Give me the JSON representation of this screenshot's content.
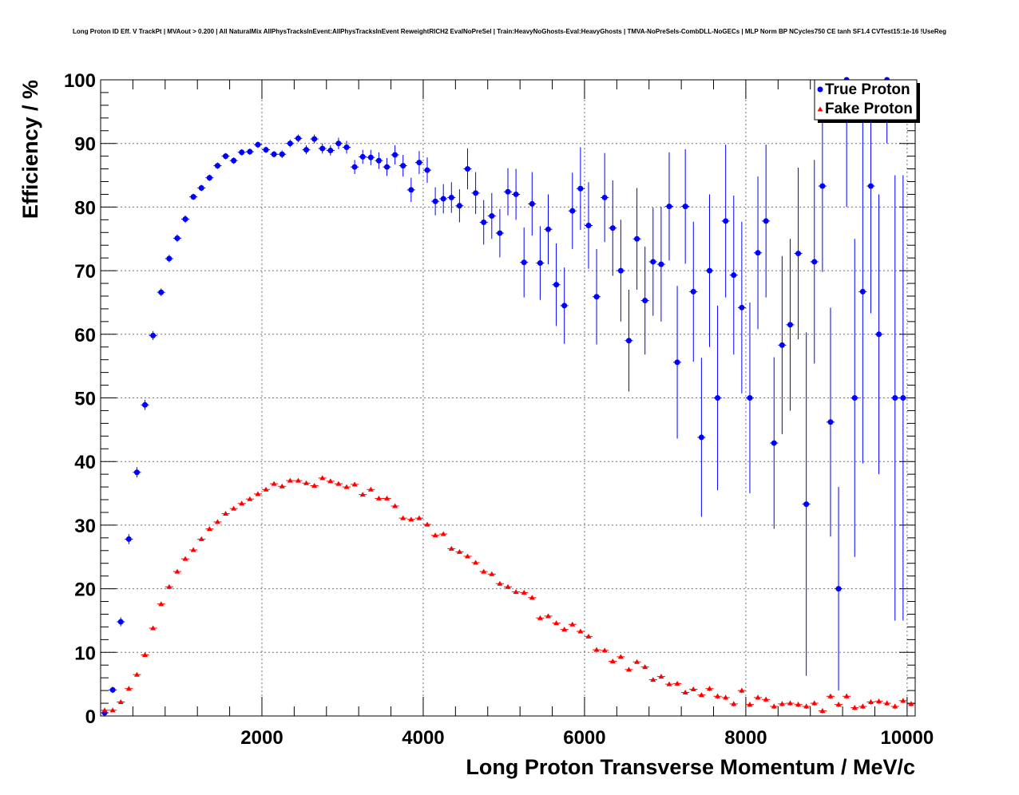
{
  "chart_data": {
    "type": "scatter",
    "title": "Long Proton ID Eff. V TrackPt | MVAout > 0.200 | All NaturalMix AllPhysTracksInEvent:AllPhysTracksInEvent ReweightRICH2 EvalNoPreSel | Train:HeavyNoGhosts-Eval:HeavyGhosts | TMVA-NoPreSels-CombDLL-NoGECs | MLP Norm BP NCycles750 CE tanh SF1.4 CVTest15:1e-16 !UseReg",
    "xlabel": "Long Proton Transverse Momentum / MeV/c",
    "ylabel": "Efficiency / %",
    "xlim": [
      0,
      10100
    ],
    "ylim": [
      0,
      100
    ],
    "x_ticks": [
      "2000",
      "4000",
      "6000",
      "8000",
      "10000"
    ],
    "y_ticks": [
      "0",
      "10",
      "20",
      "30",
      "40",
      "50",
      "60",
      "70",
      "80",
      "90",
      "100"
    ],
    "grid": true,
    "legend_position": "top-right",
    "bin_width": 100,
    "series": [
      {
        "name": "True Proton",
        "color": "#0000ff",
        "marker": "circle",
        "x": [
          50,
          150,
          250,
          350,
          450,
          550,
          650,
          750,
          850,
          950,
          1050,
          1150,
          1250,
          1350,
          1450,
          1550,
          1650,
          1750,
          1850,
          1950,
          2050,
          2150,
          2250,
          2350,
          2450,
          2550,
          2650,
          2750,
          2850,
          2950,
          3050,
          3150,
          3250,
          3350,
          3450,
          3550,
          3650,
          3750,
          3850,
          3950,
          4050,
          4150,
          4250,
          4350,
          4450,
          4550,
          4650,
          4750,
          4850,
          4950,
          5050,
          5150,
          5250,
          5350,
          5450,
          5550,
          5650,
          5750,
          5850,
          5950,
          6050,
          6150,
          6250,
          6350,
          6450,
          6550,
          6650,
          6750,
          6850,
          6950,
          7050,
          7150,
          7250,
          7350,
          7450,
          7550,
          7650,
          7750,
          7850,
          7950,
          8050,
          8150,
          8250,
          8350,
          8450,
          8550,
          8650,
          8750,
          8850,
          8950,
          9050,
          9150,
          9250,
          9350,
          9450,
          9550,
          9650,
          9750,
          9850,
          9950
        ],
        "y": [
          0.5,
          4.1,
          14.8,
          27.8,
          38.3,
          48.9,
          59.8,
          66.6,
          71.9,
          75.1,
          78.1,
          81.6,
          83.0,
          84.6,
          86.5,
          88.0,
          87.3,
          88.6,
          88.7,
          89.8,
          89.0,
          88.3,
          88.3,
          90.0,
          90.8,
          89.0,
          90.7,
          89.2,
          88.9,
          90.0,
          89.4,
          86.3,
          87.9,
          87.8,
          87.3,
          86.3,
          88.2,
          86.5,
          82.7,
          87.0,
          85.8,
          80.9,
          81.3,
          81.5,
          80.2,
          86.0,
          82.2,
          77.6,
          78.6,
          75.9,
          82.4,
          82.0,
          71.3,
          80.5,
          71.2,
          76.5,
          67.8,
          64.5,
          79.4,
          82.9,
          77.1,
          65.9,
          81.5,
          76.7,
          70.0,
          59.0,
          75.0,
          65.3,
          71.4,
          71.0,
          80.1,
          55.6,
          80.1,
          66.7,
          43.8,
          70.0,
          50.0,
          77.8,
          69.3,
          64.2,
          50.0,
          72.8,
          77.8,
          42.9,
          58.3,
          61.5,
          72.7,
          33.3,
          71.4,
          83.3,
          46.2,
          20.0,
          100.0,
          50.0,
          66.7,
          83.3,
          60.0,
          100.0,
          50.0,
          50.0
        ],
        "y_err": [
          0.3,
          0.5,
          0.7,
          0.8,
          0.8,
          0.8,
          0.7,
          0.6,
          0.6,
          0.6,
          0.6,
          0.5,
          0.5,
          0.5,
          0.5,
          0.5,
          0.5,
          0.5,
          0.5,
          0.5,
          0.5,
          0.5,
          0.6,
          0.6,
          0.6,
          0.7,
          0.7,
          0.8,
          0.8,
          0.9,
          1.0,
          1.1,
          1.1,
          1.2,
          1.3,
          1.4,
          1.5,
          1.7,
          1.9,
          1.8,
          2.0,
          2.2,
          2.3,
          2.4,
          2.6,
          3.2,
          3.3,
          3.5,
          3.6,
          3.8,
          3.7,
          4.0,
          5.5,
          5.0,
          5.8,
          5.5,
          6.5,
          6.0,
          6.0,
          6.5,
          6.8,
          7.5,
          7.0,
          7.5,
          8.0,
          8.0,
          8.0,
          8.5,
          8.5,
          9.0,
          8.5,
          12.0,
          9.0,
          11.0,
          12.5,
          12.0,
          14.5,
          12.0,
          12.5,
          13.5,
          15.0,
          12.0,
          12.0,
          13.5,
          14.0,
          13.5,
          13.5,
          27.0,
          16.0,
          13.5,
          18.0,
          16.0,
          20.0,
          25.0,
          27.0,
          20.0,
          22.0,
          10.0,
          35.0,
          35.0
        ]
      },
      {
        "name": "Fake Proton",
        "color": "#ff0000",
        "marker": "triangle",
        "x": [
          50,
          150,
          250,
          350,
          450,
          550,
          650,
          750,
          850,
          950,
          1050,
          1150,
          1250,
          1350,
          1450,
          1550,
          1650,
          1750,
          1850,
          1950,
          2050,
          2150,
          2250,
          2350,
          2450,
          2550,
          2650,
          2750,
          2850,
          2950,
          3050,
          3150,
          3250,
          3350,
          3450,
          3550,
          3650,
          3750,
          3850,
          3950,
          4050,
          4150,
          4250,
          4350,
          4450,
          4550,
          4650,
          4750,
          4850,
          4950,
          5050,
          5150,
          5250,
          5350,
          5450,
          5550,
          5650,
          5750,
          5850,
          5950,
          6050,
          6150,
          6250,
          6350,
          6450,
          6550,
          6650,
          6750,
          6850,
          6950,
          7050,
          7150,
          7250,
          7350,
          7450,
          7550,
          7650,
          7750,
          7850,
          7950,
          8050,
          8150,
          8250,
          8350,
          8450,
          8550,
          8650,
          8750,
          8850,
          8950,
          9050,
          9150,
          9250,
          9350,
          9450,
          9550,
          9650,
          9750,
          9850,
          9950,
          10050
        ],
        "y": [
          0.9,
          0.9,
          2.2,
          4.3,
          6.5,
          9.6,
          13.8,
          17.6,
          20.3,
          22.7,
          24.7,
          26.1,
          27.8,
          29.4,
          30.5,
          31.8,
          32.6,
          33.4,
          34.1,
          34.9,
          35.6,
          36.5,
          36.1,
          37.0,
          37.0,
          36.6,
          36.2,
          37.4,
          36.9,
          36.5,
          36.0,
          36.4,
          34.8,
          35.6,
          34.2,
          34.2,
          33.0,
          31.1,
          30.9,
          31.1,
          30.1,
          28.4,
          28.6,
          26.3,
          25.8,
          25.1,
          24.1,
          22.7,
          22.3,
          20.8,
          20.3,
          19.5,
          19.4,
          18.6,
          15.4,
          15.7,
          14.6,
          13.6,
          14.4,
          13.3,
          12.5,
          10.4,
          10.3,
          8.6,
          9.3,
          7.3,
          8.5,
          7.7,
          5.7,
          6.2,
          5.0,
          5.1,
          3.7,
          4.2,
          3.3,
          4.3,
          3.1,
          2.9,
          1.9,
          4.0,
          1.8,
          2.9,
          2.6,
          1.5,
          1.9,
          2.0,
          1.8,
          1.5,
          2.0,
          0.8,
          3.1,
          1.8,
          3.1,
          1.3,
          1.5,
          2.2,
          2.3,
          2.0,
          1.5,
          2.4,
          1.9
        ],
        "y_err": [
          0.2,
          0.2,
          0.2,
          0.2,
          0.2,
          0.2,
          0.2,
          0.2,
          0.2,
          0.2,
          0.2,
          0.2,
          0.2,
          0.2,
          0.2,
          0.2,
          0.2,
          0.2,
          0.2,
          0.2,
          0.2,
          0.2,
          0.2,
          0.2,
          0.2,
          0.2,
          0.2,
          0.2,
          0.2,
          0.2,
          0.2,
          0.2,
          0.2,
          0.2,
          0.2,
          0.2,
          0.2,
          0.2,
          0.2,
          0.2,
          0.2,
          0.2,
          0.2,
          0.2,
          0.2,
          0.3,
          0.3,
          0.3,
          0.3,
          0.3,
          0.3,
          0.3,
          0.3,
          0.3,
          0.3,
          0.3,
          0.3,
          0.3,
          0.3,
          0.3,
          0.3,
          0.3,
          0.3,
          0.3,
          0.3,
          0.3,
          0.3,
          0.3,
          0.3,
          0.3,
          0.3,
          0.3,
          0.3,
          0.3,
          0.3,
          0.4,
          0.4,
          0.4,
          0.4,
          0.4,
          0.4,
          0.4,
          0.4,
          0.4,
          0.4,
          0.4,
          0.4,
          0.4,
          0.4,
          0.4,
          0.4,
          0.4,
          0.4,
          0.4,
          0.4,
          0.4,
          0.4,
          0.4,
          0.4,
          0.4,
          0.4
        ]
      }
    ]
  }
}
